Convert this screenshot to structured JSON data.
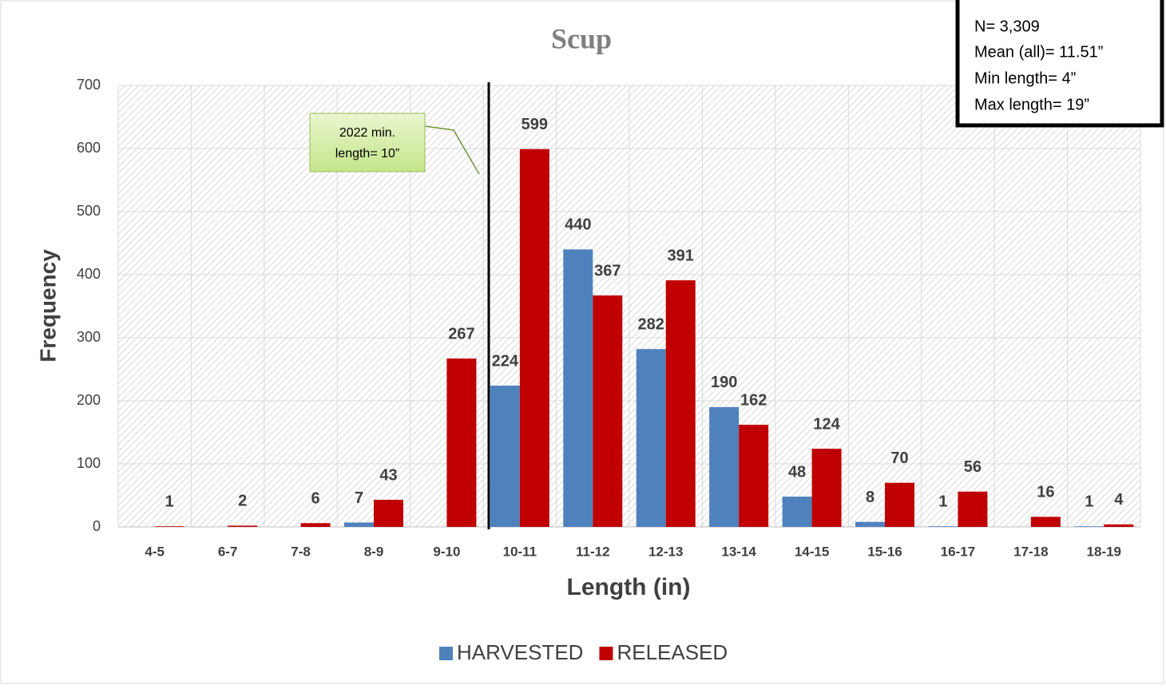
{
  "chart_data": {
    "type": "bar",
    "title": "Scup",
    "x_label": "Length (in)",
    "y_label": "Frequency",
    "categories": [
      "4-5",
      "6-7",
      "7-8",
      "8-9",
      "9-10",
      "10-11",
      "11-12",
      "12-13",
      "13-14",
      "14-15",
      "15-16",
      "16-17",
      "17-18",
      "18-19"
    ],
    "series": [
      {
        "name": "HARVESTED",
        "color": "#4f81bd",
        "values": [
          null,
          null,
          null,
          7,
          null,
          224,
          440,
          282,
          190,
          48,
          8,
          1,
          null,
          1
        ]
      },
      {
        "name": "RELEASED",
        "color": "#c00000",
        "values": [
          1,
          2,
          6,
          43,
          267,
          599,
          367,
          391,
          162,
          124,
          70,
          56,
          16,
          4
        ]
      }
    ],
    "ylim": [
      0,
      700
    ],
    "yticks": [
      0,
      100,
      200,
      300,
      400,
      500,
      600,
      700
    ],
    "grid": true,
    "legend": "bottom",
    "annotation": [
      "2022   min.",
      "length= 10”"
    ],
    "stats": [
      "N= 3,309",
      "Mean (all)= 11.51”",
      "Min length= 4”",
      "Max length= 19”"
    ]
  }
}
